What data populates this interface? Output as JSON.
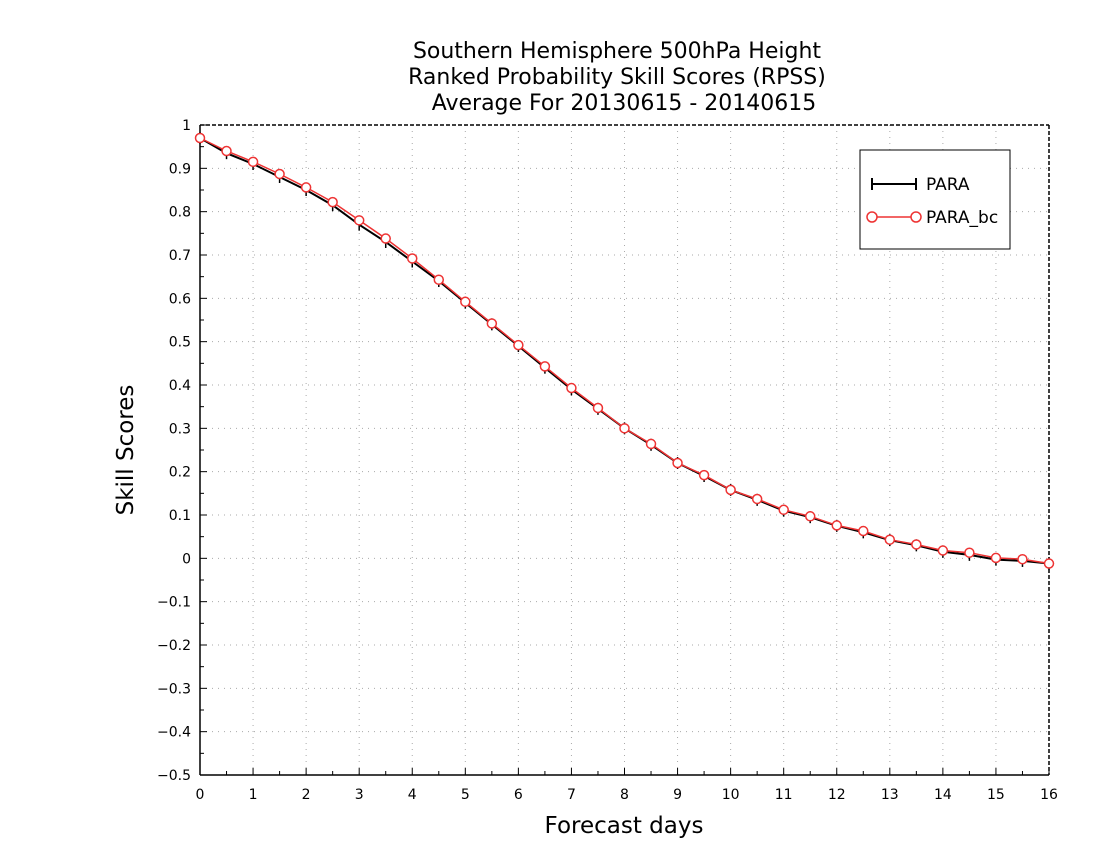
{
  "chart_data": {
    "type": "line",
    "title_lines": [
      "Southern Hemisphere 500hPa Height",
      "Ranked Probability Skill Scores (RPSS)",
      "Average For 20130615 - 20140615"
    ],
    "xlabel": "Forecast days",
    "ylabel": "Skill Scores",
    "xlim": [
      0,
      16
    ],
    "ylim": [
      -0.5,
      1
    ],
    "xticks": [
      0,
      1,
      2,
      3,
      4,
      5,
      6,
      7,
      8,
      9,
      10,
      11,
      12,
      13,
      14,
      15,
      16
    ],
    "yticks": [
      -0.5,
      -0.4,
      -0.3,
      -0.2,
      -0.1,
      0,
      0.1,
      0.2,
      0.3,
      0.4,
      0.5,
      0.6,
      0.7,
      0.8,
      0.9,
      1
    ],
    "grid": true,
    "legend_position": "top-right",
    "x": [
      0,
      0.5,
      1,
      1.5,
      2,
      2.5,
      3,
      3.5,
      4,
      4.5,
      5,
      5.5,
      6,
      6.5,
      7,
      7.5,
      8,
      8.5,
      9,
      9.5,
      10,
      10.5,
      11,
      11.5,
      12,
      12.5,
      13,
      13.5,
      14,
      14.5,
      15,
      15.5,
      16
    ],
    "series": [
      {
        "name": "PARA",
        "color": "#000000",
        "marker": "plus",
        "values": [
          0.97,
          0.935,
          0.91,
          0.88,
          0.85,
          0.815,
          0.77,
          0.73,
          0.685,
          0.64,
          0.59,
          0.54,
          0.49,
          0.44,
          0.39,
          0.345,
          0.3,
          0.262,
          0.22,
          0.19,
          0.158,
          0.135,
          0.11,
          0.095,
          0.075,
          0.06,
          0.042,
          0.03,
          0.015,
          0.008,
          -0.003,
          -0.006,
          -0.012
        ]
      },
      {
        "name": "PARA_bc",
        "color": "#ee3333",
        "marker": "circle",
        "values": [
          0.97,
          0.94,
          0.915,
          0.887,
          0.856,
          0.822,
          0.78,
          0.738,
          0.692,
          0.643,
          0.592,
          0.542,
          0.492,
          0.443,
          0.393,
          0.347,
          0.3,
          0.264,
          0.22,
          0.192,
          0.158,
          0.137,
          0.112,
          0.097,
          0.076,
          0.063,
          0.043,
          0.032,
          0.018,
          0.013,
          0.001,
          -0.002,
          -0.012
        ]
      }
    ]
  }
}
